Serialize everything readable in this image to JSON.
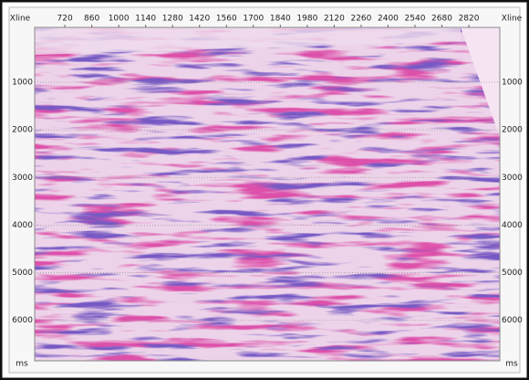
{
  "chart_data": {
    "type": "seismic",
    "x_label": "Xline",
    "y_label": "ms",
    "xlim": [
      563,
      2981
    ],
    "xticks": [
      720,
      860,
      1000,
      1140,
      1280,
      1420,
      1560,
      1700,
      1840,
      1980,
      2120,
      2260,
      2400,
      2540,
      2680,
      2820
    ],
    "ylim": [
      -150,
      6850
    ],
    "yticks": [
      1000,
      2000,
      3000,
      4000,
      5000,
      6000
    ],
    "grid": true
  }
}
